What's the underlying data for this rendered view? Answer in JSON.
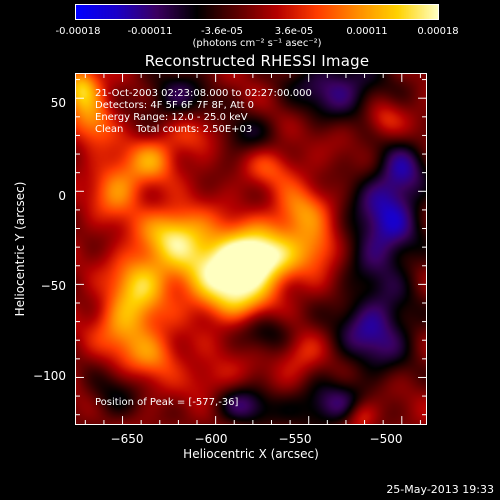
{
  "colorbar": {
    "tick_labels": [
      "-0.00018",
      "-0.00011",
      "-3.6e-05",
      "3.6e-05",
      "0.00011",
      "0.00018"
    ],
    "units": "(photons cm⁻² s⁻¹ asec⁻²)",
    "range": [
      -0.00018,
      0.00018
    ],
    "colors": [
      "#0000ff",
      "#1a00c8",
      "#3b0060",
      "#000000",
      "#5a0000",
      "#b40000",
      "#ff3c00",
      "#ff8c00",
      "#ffd200",
      "#ffffc0"
    ]
  },
  "chart_data": {
    "type": "heatmap",
    "title": "Reconstructed RHESSI Image",
    "xlabel": "Heliocentric X (arcsec)",
    "ylabel": "Heliocentric Y (arcsec)",
    "xlim": [
      -675,
      -487
    ],
    "ylim": [
      -125,
      63
    ],
    "x_ticks": [
      -650,
      -600,
      -550,
      -500
    ],
    "x_tick_labels": [
      "−650",
      "−600",
      "−550",
      "−500"
    ],
    "y_ticks": [
      -100,
      -50,
      0,
      50
    ],
    "y_tick_labels": [
      "−100",
      "−50",
      "0",
      "50"
    ],
    "peak": [
      -577,
      -36
    ],
    "blobs": [
      {
        "x": -577,
        "y": -36,
        "amp": 1.0,
        "sx": 14,
        "sy": 11
      },
      {
        "x": -600,
        "y": -40,
        "amp": 0.75,
        "sx": 18,
        "sy": 14
      },
      {
        "x": -622,
        "y": -22,
        "amp": 0.7,
        "sx": 12,
        "sy": 10
      },
      {
        "x": -640,
        "y": -48,
        "amp": 0.65,
        "sx": 11,
        "sy": 12
      },
      {
        "x": -648,
        "y": -72,
        "amp": 0.6,
        "sx": 11,
        "sy": 12
      },
      {
        "x": -632,
        "y": -88,
        "amp": 0.45,
        "sx": 10,
        "sy": 9
      },
      {
        "x": -652,
        "y": 2,
        "amp": 0.55,
        "sx": 10,
        "sy": 12
      },
      {
        "x": -633,
        "y": 17,
        "amp": 0.5,
        "sx": 9,
        "sy": 9
      },
      {
        "x": -665,
        "y": 38,
        "amp": 0.5,
        "sx": 8,
        "sy": 10
      },
      {
        "x": -672,
        "y": 55,
        "amp": 0.75,
        "sx": 7,
        "sy": 8
      },
      {
        "x": -555,
        "y": -12,
        "amp": 0.55,
        "sx": 10,
        "sy": 10
      },
      {
        "x": -545,
        "y": -30,
        "amp": 0.45,
        "sx": 9,
        "sy": 9
      },
      {
        "x": -590,
        "y": -58,
        "amp": 0.5,
        "sx": 14,
        "sy": 9
      },
      {
        "x": -612,
        "y": 30,
        "amp": 0.3,
        "sx": 9,
        "sy": 8
      },
      {
        "x": -570,
        "y": 12,
        "amp": 0.3,
        "sx": 10,
        "sy": 8
      },
      {
        "x": -603,
        "y": -100,
        "amp": 0.25,
        "sx": 10,
        "sy": 8
      },
      {
        "x": -555,
        "y": -88,
        "amp": 0.3,
        "sx": 9,
        "sy": 9
      },
      {
        "x": -522,
        "y": -120,
        "amp": 0.4,
        "sx": 6,
        "sy": 6
      },
      {
        "x": -510,
        "y": 38,
        "amp": 0.3,
        "sx": 7,
        "sy": 7
      },
      {
        "x": -535,
        "y": 55,
        "amp": -0.6,
        "sx": 18,
        "sy": 12
      },
      {
        "x": -510,
        "y": -20,
        "amp": -0.7,
        "sx": 14,
        "sy": 20
      },
      {
        "x": -515,
        "y": -75,
        "amp": -0.65,
        "sx": 15,
        "sy": 16
      },
      {
        "x": -540,
        "y": -115,
        "amp": -0.55,
        "sx": 15,
        "sy": 9
      },
      {
        "x": -585,
        "y": -115,
        "amp": -0.5,
        "sx": 12,
        "sy": 8
      },
      {
        "x": -620,
        "y": 50,
        "amp": -0.45,
        "sx": 14,
        "sy": 10
      },
      {
        "x": -585,
        "y": 30,
        "amp": -0.35,
        "sx": 10,
        "sy": 8
      },
      {
        "x": -570,
        "y": -75,
        "amp": -0.35,
        "sx": 11,
        "sy": 8
      },
      {
        "x": -655,
        "y": -110,
        "amp": -0.3,
        "sx": 10,
        "sy": 10
      },
      {
        "x": -500,
        "y": 10,
        "amp": -0.5,
        "sx": 10,
        "sy": 12
      }
    ]
  },
  "annotations": {
    "time_range": "21-Oct-2003 02:23:08.000 to 02:27:00.000",
    "detectors": "Detectors: 4F 5F 6F 7F 8F, Att 0",
    "energy_range": "Energy Range: 12.0 - 25.0 keV",
    "clean_counts": "Clean    Total counts: 2.50E+03",
    "peak_position": "Position of Peak = [-577,-36]"
  },
  "timestamp": "25-May-2013 19:33"
}
